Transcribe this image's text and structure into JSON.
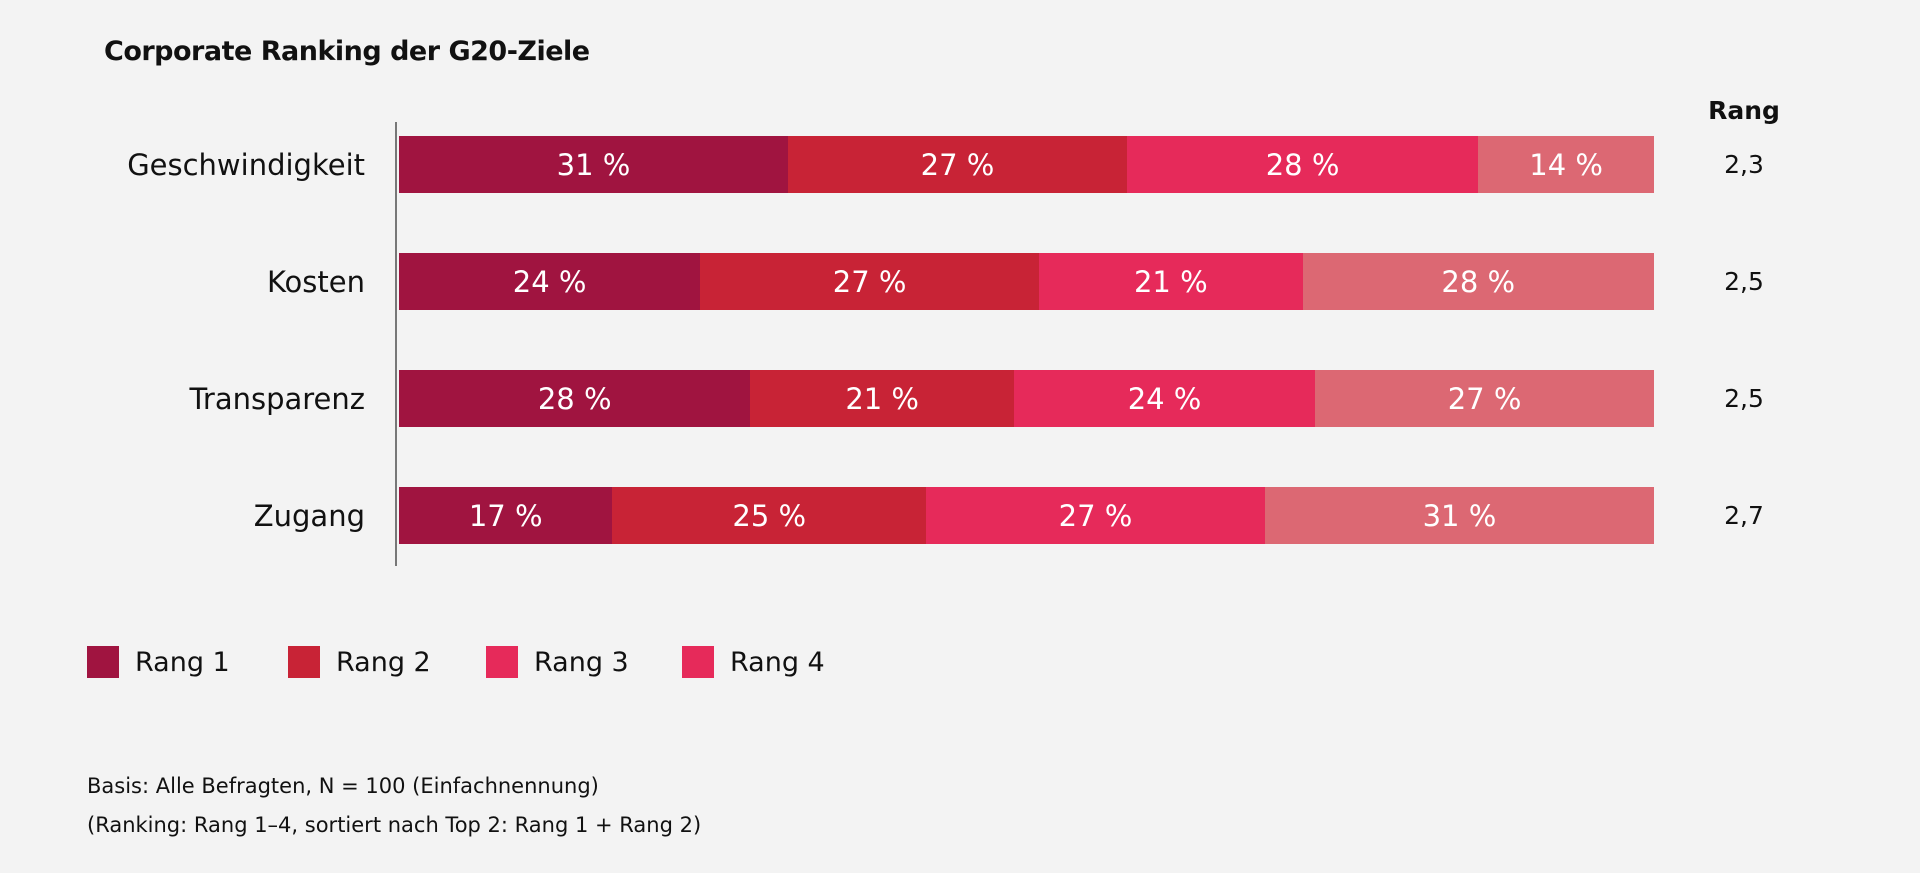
{
  "chart_data": {
    "type": "bar",
    "orientation": "horizontal",
    "stacked": true,
    "title": "Corporate Ranking der G20-Ziele",
    "categories": [
      "Geschwindigkeit",
      "Kosten",
      "Transparenz",
      "Zugang"
    ],
    "series": [
      {
        "name": "Rang 1",
        "color": "#a01440",
        "values": [
          31,
          24,
          28,
          17
        ]
      },
      {
        "name": "Rang 2",
        "color": "#c82336",
        "values": [
          27,
          27,
          21,
          25
        ]
      },
      {
        "name": "Rang 3",
        "color": "#e62a5a",
        "values": [
          28,
          21,
          24,
          27
        ]
      },
      {
        "name": "Rang 4",
        "color": "#dc6873",
        "legend_color": "#e62a5a",
        "values": [
          14,
          28,
          27,
          31
        ]
      }
    ],
    "value_suffix": " %",
    "rank_header": "Rang",
    "rank_values": [
      "2,3",
      "2,5",
      "2,5",
      "2,7"
    ],
    "xlim": [
      0,
      100
    ],
    "grid": false,
    "legend_position": "bottom-left"
  },
  "footnote": {
    "line1": "Basis: Alle Befragten, N = 100 (Einfachnennung)",
    "line2": "(Ranking: Rang 1–4, sortiert nach Top 2: Rang 1 + Rang 2)"
  }
}
